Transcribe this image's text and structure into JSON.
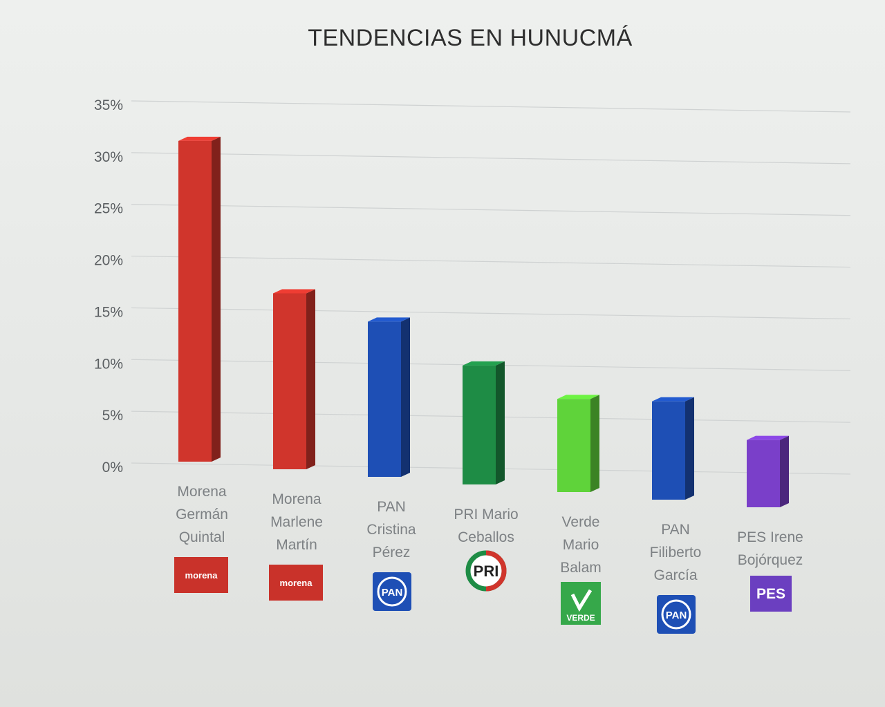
{
  "chart_data": {
    "type": "bar",
    "title": "TENDENCIAS EN HUNUCMÁ",
    "xlabel": "",
    "ylabel": "",
    "ylim": [
      0,
      35
    ],
    "y_ticks": [
      "0%",
      "5%",
      "10%",
      "15%",
      "20%",
      "25%",
      "30%",
      "35%"
    ],
    "grid": true,
    "categories": [
      [
        "Morena",
        "Germán",
        "Quintal"
      ],
      [
        "Morena",
        "Marlene",
        "Martín"
      ],
      [
        "PAN",
        "Cristina",
        "Pérez"
      ],
      [
        "PRI Mario",
        "Ceballos"
      ],
      [
        "Verde",
        "Mario",
        "Balam"
      ],
      [
        "PAN",
        "Filiberto",
        "García"
      ],
      [
        "PES Irene",
        "Bojórquez"
      ]
    ],
    "values": [
      31,
      17,
      15,
      11.5,
      9,
      9.5,
      6.5
    ],
    "colors": [
      "#d0352c",
      "#d0352c",
      "#1e4fb5",
      "#1e8c45",
      "#5fd33a",
      "#1e4fb5",
      "#7a3fc9"
    ],
    "logos": [
      {
        "icon": "morena-logo",
        "text": "morena",
        "color": "#c9322a"
      },
      {
        "icon": "morena-logo",
        "text": "morena",
        "color": "#c9322a"
      },
      {
        "icon": "pan-logo",
        "text": "PAN",
        "color": "#1e4fb5"
      },
      {
        "icon": "pri-logo",
        "text": "PRI",
        "color": "#d0352c"
      },
      {
        "icon": "verde-logo",
        "text": "VERDE",
        "color": "#36a84a"
      },
      {
        "icon": "pan-logo",
        "text": "PAN",
        "color": "#1e4fb5"
      },
      {
        "icon": "pes-logo",
        "text": "PES",
        "color": "#6b3fc0"
      }
    ]
  }
}
